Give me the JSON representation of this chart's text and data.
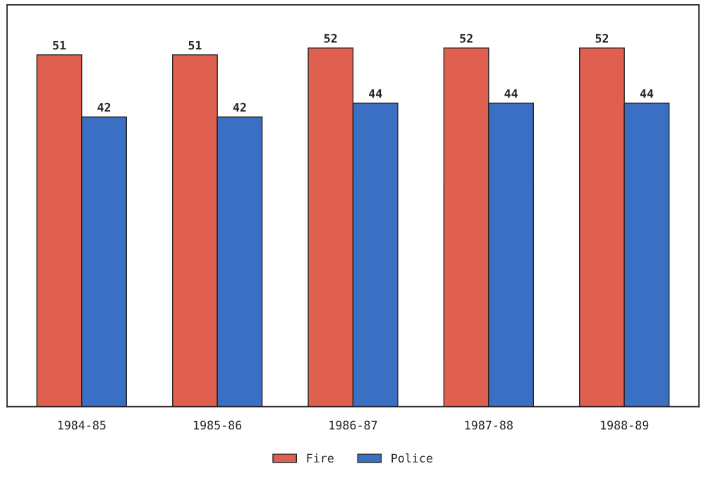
{
  "chart_data": {
    "type": "bar",
    "categories": [
      "1984-85",
      "1985-86",
      "1986-87",
      "1987-88",
      "1988-89"
    ],
    "series": [
      {
        "name": "Fire",
        "color": "#e0604f",
        "values": [
          51,
          51,
          52,
          52,
          52
        ]
      },
      {
        "name": "Police",
        "color": "#3a6fc4",
        "values": [
          42,
          42,
          44,
          44,
          44
        ]
      }
    ],
    "data_labels": true,
    "grid": false,
    "legend": "bottom"
  }
}
